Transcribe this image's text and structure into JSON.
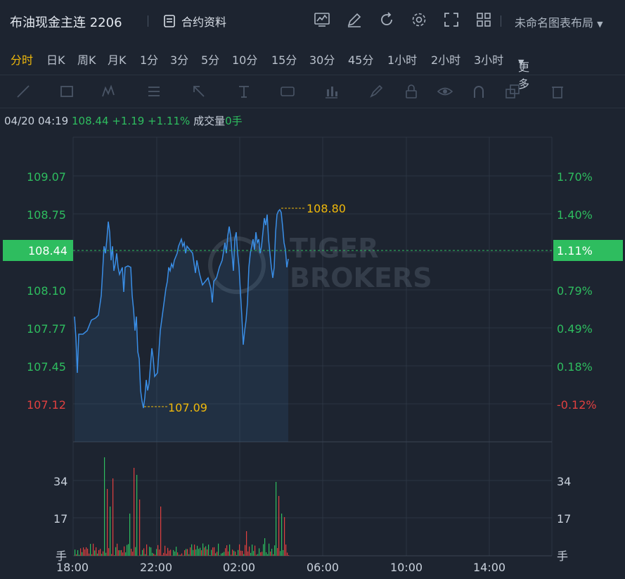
{
  "header": {
    "title": "布油现金主连 2206",
    "contract_label": "合约资料",
    "layout_label": "未命名图表布局"
  },
  "periods": [
    "分时",
    "日K",
    "周K",
    "月K",
    "1分",
    "3分",
    "5分",
    "10分",
    "15分",
    "30分",
    "45分",
    "1小时",
    "2小时",
    "3小时",
    "更多"
  ],
  "active_period": "分时",
  "info_bar": {
    "datetime": "04/20 04:19",
    "price": "108.44",
    "change": "+1.19",
    "change_pct": "+1.11%",
    "volume_label": "成交量",
    "volume_value": "0手"
  },
  "colors": {
    "up": "#2ebd5f",
    "down": "#e04040",
    "line": "#3a8ee6",
    "accent": "#f0b90b"
  },
  "watermark": [
    "TIGER",
    "BROKERS"
  ],
  "chart_data": {
    "type": "line",
    "price_axis_left": [
      "109.07",
      "108.75",
      "108.44",
      "108.10",
      "107.77",
      "107.45",
      "107.12"
    ],
    "price_axis_right": [
      "1.70%",
      "1.40%",
      "1.11%",
      "0.79%",
      "0.49%",
      "0.18%",
      "-0.12%"
    ],
    "current_price": "108.44",
    "current_pct": "1.11%",
    "high_label": "108.80",
    "low_label": "107.09",
    "volume_axis": [
      "34",
      "17",
      "手"
    ],
    "x_ticks": [
      "18:00",
      "22:00",
      "02:00",
      "06:00",
      "10:00",
      "14:00"
    ]
  }
}
